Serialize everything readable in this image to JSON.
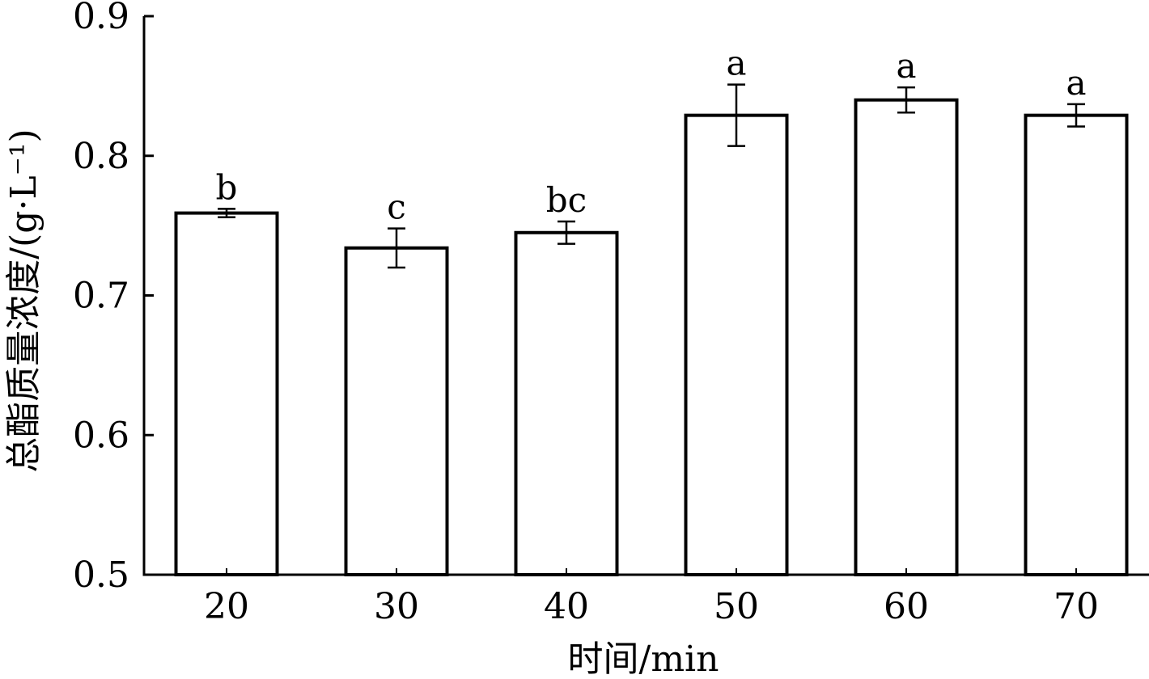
{
  "chart_data": {
    "type": "bar",
    "categories": [
      "20",
      "30",
      "40",
      "50",
      "60",
      "70"
    ],
    "values": [
      0.759,
      0.734,
      0.745,
      0.829,
      0.84,
      0.829
    ],
    "errors": [
      0.003,
      0.014,
      0.008,
      0.022,
      0.009,
      0.008
    ],
    "significance": [
      "b",
      "c",
      "bc",
      "a",
      "a",
      "a"
    ],
    "xlabel": "时间/min",
    "ylabel": "总酯质量浓度/(g·L⁻¹)",
    "ylim": [
      0.5,
      0.9
    ],
    "yticks": [
      "0.5",
      "0.6",
      "0.7",
      "0.8",
      "0.9"
    ],
    "grid": false,
    "bar_fill": "#ffffff",
    "bar_stroke": "#000000"
  }
}
